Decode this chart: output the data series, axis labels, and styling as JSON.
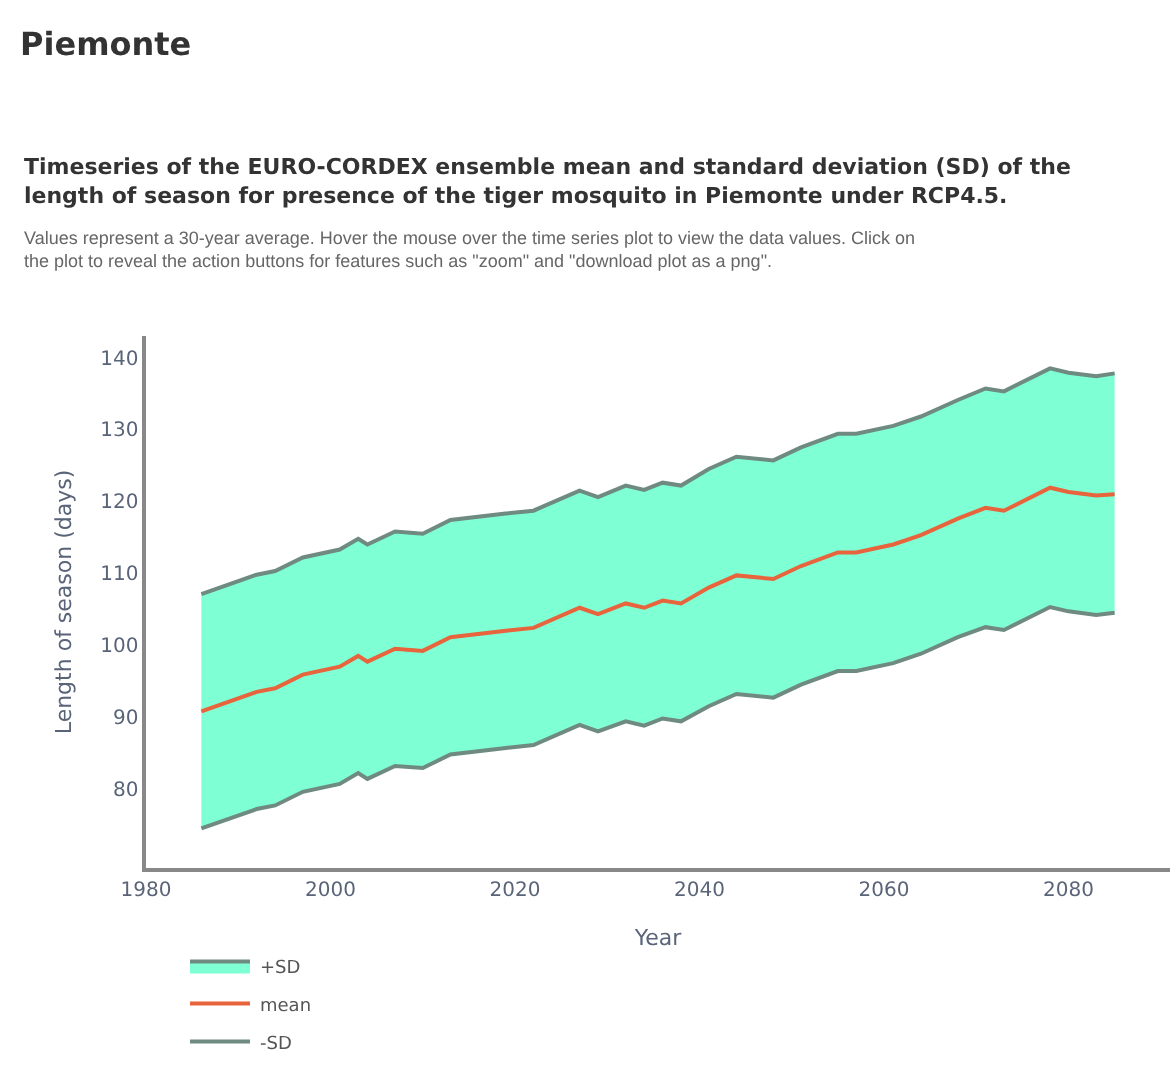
{
  "chart_data": {
    "type": "line",
    "title": "Piemonte",
    "subtitle": "Timeseries of the EURO-CORDEX ensemble mean and standard deviation (SD) of the length of season for presence of the tiger mosquito in Piemonte under RCP4.5.",
    "annotations": [
      "Values represent a 30-year average. Hover the mouse over the time series plot to view the data values. Click on the plot to reveal the action buttons for features such as \"zoom\" and \"download plot as a png\"."
    ],
    "xlabel": "Year",
    "ylabel": "Length of season (days)",
    "x": [
      1986,
      1992,
      1994,
      1997,
      2001,
      2003,
      2004,
      2007,
      2010,
      2013,
      2019,
      2022,
      2027,
      2029,
      2032,
      2034,
      2036,
      2038,
      2041,
      2044,
      2048,
      2051,
      2055,
      2057,
      2061,
      2064,
      2068,
      2071,
      2073,
      2078,
      2080,
      2083,
      2085
    ],
    "series": [
      {
        "name": "+SD",
        "type": "area",
        "color": "#7fffd4",
        "values": [
          107.1,
          109.8,
          110.3,
          112.2,
          113.3,
          114.8,
          114.0,
          115.8,
          115.5,
          117.4,
          118.3,
          118.7,
          121.5,
          120.6,
          122.2,
          121.6,
          122.6,
          122.2,
          124.5,
          126.2,
          125.7,
          127.5,
          129.4,
          129.4,
          130.5,
          131.8,
          134.1,
          135.7,
          135.3,
          138.5,
          137.9,
          137.4,
          137.8
        ]
      },
      {
        "name": "mean",
        "color": "#e8643c",
        "values": [
          90.8,
          93.5,
          94.0,
          95.9,
          97.0,
          98.5,
          97.7,
          99.5,
          99.2,
          101.1,
          102.0,
          102.4,
          105.2,
          104.3,
          105.8,
          105.2,
          106.2,
          105.8,
          108.0,
          109.7,
          109.2,
          111.0,
          112.9,
          112.9,
          114.0,
          115.3,
          117.6,
          119.1,
          118.7,
          121.9,
          121.3,
          120.8,
          121.0
        ]
      },
      {
        "name": "-SD",
        "color": "#6f8a80",
        "values": [
          74.5,
          77.2,
          77.7,
          79.6,
          80.7,
          82.2,
          81.4,
          83.2,
          82.9,
          84.8,
          85.7,
          86.1,
          88.9,
          88.0,
          89.4,
          88.8,
          89.8,
          89.4,
          91.5,
          93.2,
          92.7,
          94.5,
          96.4,
          96.4,
          97.5,
          98.8,
          101.1,
          102.5,
          102.1,
          105.3,
          104.7,
          104.2,
          104.5
        ]
      }
    ],
    "xlim": [
      1980,
      2091
    ],
    "xticks": [
      1980,
      2000,
      2020,
      2040,
      2060,
      2080
    ],
    "ylim": [
      69,
      143
    ],
    "yticks": [
      80,
      90,
      100,
      110,
      120,
      130,
      140
    ],
    "grid": false,
    "legend": "bottom left",
    "marker": "none",
    "line_style": "solid"
  }
}
